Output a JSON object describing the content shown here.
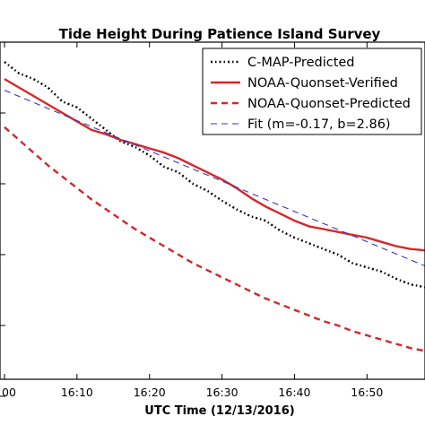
{
  "chart_data": {
    "type": "line",
    "title": "Tide Height During Patience Island Survey",
    "xlabel": "UTC Time (12/13/2016)",
    "ylabel": "",
    "x_tick_labels": [
      "00",
      "16:10",
      "16:20",
      "16:30",
      "16:40",
      "16:50"
    ],
    "x_tick_values": [
      0,
      10,
      20,
      30,
      40,
      50
    ],
    "xlim": [
      0,
      58
    ],
    "ylim": [
      0.62,
      3.0
    ],
    "grid": false,
    "legend_placement": "top-right",
    "series": [
      {
        "name": "C-MAP-Predicted",
        "color": "#000000",
        "style": "dash-dot",
        "x": [
          0,
          2,
          4,
          6,
          8,
          10,
          12,
          14,
          16,
          18,
          20,
          22,
          24,
          26,
          28,
          30,
          32,
          34,
          36,
          38,
          40,
          42,
          44,
          46,
          48,
          50,
          52,
          54,
          56,
          58
        ],
        "y": [
          2.86,
          2.78,
          2.74,
          2.68,
          2.58,
          2.54,
          2.46,
          2.38,
          2.3,
          2.26,
          2.2,
          2.12,
          2.08,
          2.0,
          1.95,
          1.88,
          1.82,
          1.77,
          1.74,
          1.67,
          1.62,
          1.58,
          1.54,
          1.5,
          1.44,
          1.41,
          1.38,
          1.33,
          1.29,
          1.27
        ]
      },
      {
        "name": "NOAA-Quonset-Verified",
        "color": "#d62728",
        "style": "solid",
        "x": [
          0,
          2,
          4,
          6,
          8,
          10,
          12,
          14,
          16,
          18,
          20,
          22,
          24,
          26,
          28,
          30,
          32,
          34,
          36,
          38,
          40,
          42,
          44,
          46,
          48,
          50,
          52,
          54,
          56,
          58
        ],
        "y": [
          2.74,
          2.68,
          2.62,
          2.56,
          2.5,
          2.44,
          2.38,
          2.35,
          2.31,
          2.28,
          2.25,
          2.22,
          2.18,
          2.13,
          2.08,
          2.03,
          1.97,
          1.9,
          1.84,
          1.79,
          1.74,
          1.7,
          1.68,
          1.66,
          1.64,
          1.62,
          1.59,
          1.56,
          1.54,
          1.53
        ]
      },
      {
        "name": "NOAA-Quonset-Predicted",
        "color": "#d62728",
        "style": "dashed",
        "x": [
          0,
          2,
          4,
          6,
          8,
          10,
          12,
          14,
          16,
          18,
          20,
          22,
          24,
          26,
          28,
          30,
          32,
          34,
          36,
          38,
          40,
          42,
          44,
          46,
          48,
          50,
          52,
          54,
          56,
          58
        ],
        "y": [
          2.4,
          2.31,
          2.22,
          2.13,
          2.05,
          1.97,
          1.89,
          1.82,
          1.75,
          1.68,
          1.62,
          1.56,
          1.5,
          1.44,
          1.39,
          1.34,
          1.29,
          1.24,
          1.19,
          1.15,
          1.11,
          1.07,
          1.03,
          1.0,
          0.96,
          0.93,
          0.9,
          0.87,
          0.84,
          0.82
        ]
      },
      {
        "name": "Fit (m=-0.17, b=2.86)",
        "color": "#3333cc",
        "style": "dashed-thin",
        "x": [
          0,
          58
        ],
        "y": [
          2.66,
          1.42
        ]
      }
    ]
  }
}
